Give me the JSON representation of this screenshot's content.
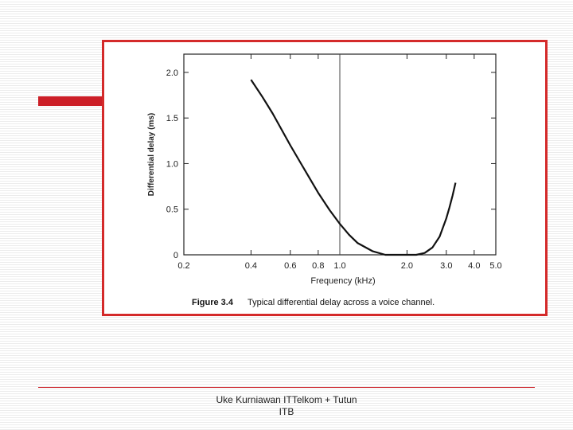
{
  "colors": {
    "accent": "#cc1f27",
    "frame": "#d42a2a",
    "curve": "#111111"
  },
  "figure": {
    "number": "Figure 3.4",
    "caption": "Typical differential delay across a voice channel."
  },
  "footer": {
    "line1": "Uke Kurniawan ITTelkom + Tutun",
    "line2": "ITB"
  },
  "chart_data": {
    "type": "line",
    "xlabel": "Frequency (kHz)",
    "ylabel": "Differential delay (ms)",
    "x_scale": "log",
    "xlim": [
      0.2,
      5.0
    ],
    "ylim": [
      0,
      2.2
    ],
    "x_ticks": [
      {
        "value": 0.2,
        "label": "0.2"
      },
      {
        "value": 0.4,
        "label": "0.4"
      },
      {
        "value": 0.6,
        "label": "0.6"
      },
      {
        "value": 0.8,
        "label": "0.8"
      },
      {
        "value": 1.0,
        "label": "1.0"
      },
      {
        "value": 2.0,
        "label": "2.0"
      },
      {
        "value": 3.0,
        "label": "3.0"
      },
      {
        "value": 4.0,
        "label": "4.0"
      },
      {
        "value": 5.0,
        "label": "5.0"
      }
    ],
    "y_ticks": [
      {
        "value": 0,
        "label": "0"
      },
      {
        "value": 0.5,
        "label": "0.5"
      },
      {
        "value": 1.0,
        "label": "1.0"
      },
      {
        "value": 1.5,
        "label": "1.5"
      },
      {
        "value": 2.0,
        "label": "2.0"
      }
    ],
    "reference_line_x": 1.0,
    "grid": false,
    "series": [
      {
        "x": [
          0.4,
          0.45,
          0.5,
          0.6,
          0.7,
          0.8,
          0.9,
          1.0,
          1.1,
          1.2,
          1.4,
          1.6,
          1.8,
          2.0,
          2.2,
          2.4,
          2.6,
          2.8,
          3.0,
          3.1,
          3.2,
          3.3
        ],
        "y": [
          1.92,
          1.73,
          1.55,
          1.2,
          0.92,
          0.68,
          0.49,
          0.34,
          0.22,
          0.13,
          0.04,
          0.0,
          0.0,
          0.0,
          0.0,
          0.02,
          0.08,
          0.2,
          0.4,
          0.52,
          0.65,
          0.79
        ]
      }
    ]
  }
}
